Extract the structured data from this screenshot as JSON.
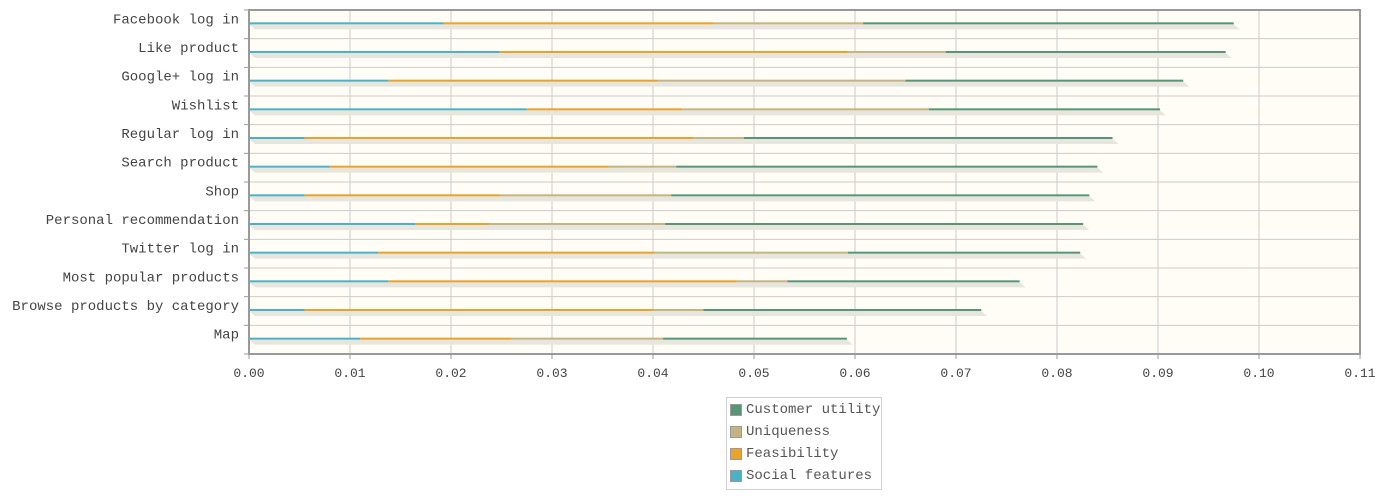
{
  "chart_data": {
    "type": "bar",
    "stacked": true,
    "orientation": "horizontal",
    "categories": [
      "Facebook log in",
      "Like product",
      "Google+ log in",
      "Wishlist",
      "Regular log in",
      "Search product",
      "Shop",
      "Personal recommendation",
      "Twitter log in",
      "Most popular products",
      "Browse products by category",
      "Map"
    ],
    "series": [
      {
        "name": "Social features",
        "color": "#4bb2c5",
        "values": [
          0.0193,
          0.0248,
          0.0138,
          0.0275,
          0.0055,
          0.008,
          0.0055,
          0.0165,
          0.0128,
          0.0138,
          0.0055,
          0.011
        ]
      },
      {
        "name": "Feasibility",
        "color": "#eaa228",
        "values": [
          0.0267,
          0.0345,
          0.0267,
          0.0154,
          0.0385,
          0.0276,
          0.0193,
          0.0073,
          0.0273,
          0.0345,
          0.0345,
          0.015
        ]
      },
      {
        "name": "Uniqueness",
        "color": "#c5b47f",
        "values": [
          0.0148,
          0.0097,
          0.0245,
          0.0244,
          0.005,
          0.0067,
          0.017,
          0.0174,
          0.0192,
          0.005,
          0.005,
          0.015
        ]
      },
      {
        "name": "Customer utility",
        "color": "#579575",
        "values": [
          0.0367,
          0.0277,
          0.0275,
          0.0229,
          0.0365,
          0.0417,
          0.0414,
          0.0414,
          0.023,
          0.023,
          0.0275,
          0.0182
        ]
      }
    ],
    "xlim": [
      0,
      0.11
    ],
    "xticks": [
      "0.00",
      "0.01",
      "0.02",
      "0.03",
      "0.04",
      "0.05",
      "0.06",
      "0.07",
      "0.08",
      "0.09",
      "0.10",
      "0.11"
    ],
    "grid": true,
    "legend": {
      "position": "bottom-center",
      "order": [
        "Customer utility",
        "Uniqueness",
        "Feasibility",
        "Social features"
      ]
    }
  },
  "colors": {
    "plot_background": "#fffdf6",
    "grid": "#cccccc",
    "border": "#999999"
  }
}
